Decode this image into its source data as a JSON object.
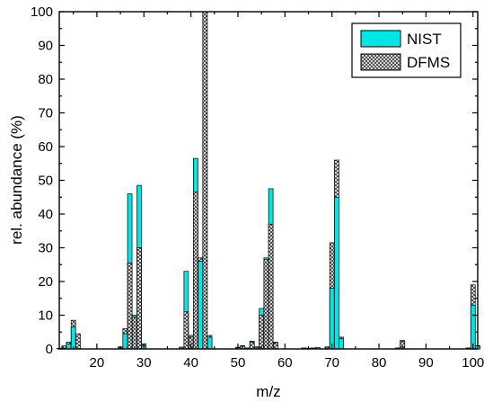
{
  "chart_data": {
    "type": "bar",
    "xlabel": "m/z",
    "ylabel": "rel. abundance (%)",
    "xlim": [
      12,
      101
    ],
    "ylim": [
      0,
      100
    ],
    "xticks": [
      20,
      30,
      40,
      50,
      60,
      70,
      80,
      90,
      100
    ],
    "yticks": [
      0,
      10,
      20,
      30,
      40,
      50,
      60,
      70,
      80,
      90,
      100
    ],
    "grid": false,
    "legend_position": "top-right",
    "series": [
      {
        "name": "NIST",
        "color": "#00e5e5",
        "pattern": "solid",
        "points": [
          [
            13,
            0.3
          ],
          [
            14,
            1.5
          ],
          [
            15,
            6.5
          ],
          [
            25,
            0.6
          ],
          [
            26,
            4.5
          ],
          [
            27,
            46
          ],
          [
            28,
            10
          ],
          [
            29,
            48.5
          ],
          [
            30,
            1
          ],
          [
            38,
            0.5
          ],
          [
            39,
            23
          ],
          [
            40,
            4
          ],
          [
            41,
            56.5
          ],
          [
            42,
            26
          ],
          [
            43,
            100
          ],
          [
            44,
            3.5
          ],
          [
            50,
            0.5
          ],
          [
            51,
            1
          ],
          [
            52,
            0.3
          ],
          [
            53,
            2.3
          ],
          [
            54,
            0.6
          ],
          [
            55,
            12
          ],
          [
            56,
            27
          ],
          [
            57,
            47.5
          ],
          [
            58,
            2
          ],
          [
            65,
            0.2
          ],
          [
            67,
            0.4
          ],
          [
            69,
            0.6
          ],
          [
            70,
            18
          ],
          [
            71,
            45
          ],
          [
            72,
            3
          ],
          [
            85,
            2.5
          ],
          [
            99,
            0.3
          ],
          [
            100,
            13
          ],
          [
            101,
            0.9
          ]
        ]
      },
      {
        "name": "DFMS",
        "color": "#888888",
        "pattern": "crosshatch",
        "points": [
          [
            12,
            0.2
          ],
          [
            13,
            0.9
          ],
          [
            14,
            2
          ],
          [
            15,
            8.5
          ],
          [
            16,
            4.5
          ],
          [
            25,
            0.5
          ],
          [
            26,
            6
          ],
          [
            27,
            25.5
          ],
          [
            28,
            9.5
          ],
          [
            29,
            30
          ],
          [
            30,
            1.5
          ],
          [
            38,
            0.5
          ],
          [
            39,
            11
          ],
          [
            40,
            3.5
          ],
          [
            41,
            46.5
          ],
          [
            42,
            27
          ],
          [
            43,
            100
          ],
          [
            44,
            4
          ],
          [
            50,
            0.4
          ],
          [
            51,
            0.8
          ],
          [
            53,
            2
          ],
          [
            54,
            0.5
          ],
          [
            55,
            10
          ],
          [
            56,
            26.5
          ],
          [
            57,
            37
          ],
          [
            58,
            1.8
          ],
          [
            64,
            0.3
          ],
          [
            66,
            0.3
          ],
          [
            69,
            0.5
          ],
          [
            70,
            31.5
          ],
          [
            71,
            56
          ],
          [
            72,
            3.5
          ],
          [
            84,
            0.3
          ],
          [
            85,
            2.2
          ],
          [
            99,
            0.3
          ],
          [
            100,
            19
          ],
          [
            101,
            1
          ]
        ]
      }
    ]
  }
}
